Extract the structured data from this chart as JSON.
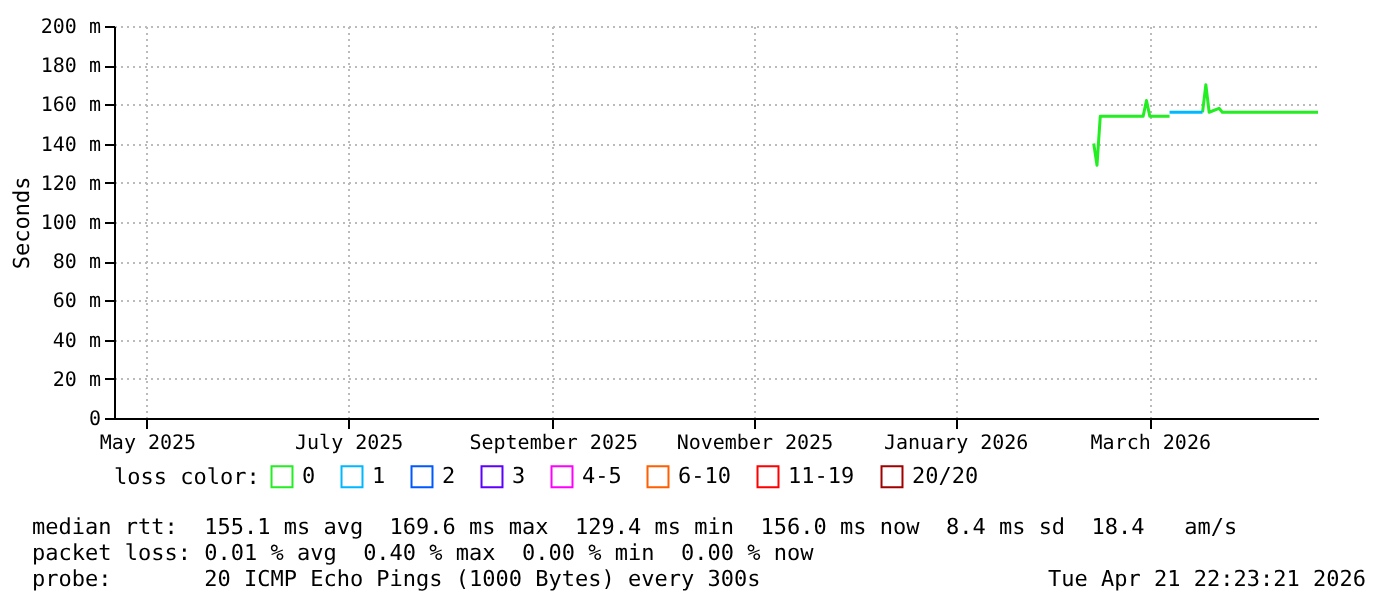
{
  "chart_data": {
    "type": "line",
    "ylabel": "Seconds",
    "legend_title": "loss color:",
    "legend": "bottom",
    "grid": true,
    "line_style": "solid",
    "marker": "none",
    "xlim": [
      "2025-04-21",
      "2026-04-21"
    ],
    "xticks": [
      {
        "value": "2025-05-01",
        "label": "May 2025"
      },
      {
        "value": "2025-07-01",
        "label": "July 2025"
      },
      {
        "value": "2025-09-01",
        "label": "September 2025"
      },
      {
        "value": "2025-11-01",
        "label": "November 2025"
      },
      {
        "value": "2026-01-01",
        "label": "January 2026"
      },
      {
        "value": "2026-03-01",
        "label": "March 2026"
      }
    ],
    "ylim": [
      0,
      200
    ],
    "yticks": [
      0,
      {
        "value": 20,
        "label": "20 m"
      },
      {
        "value": 40,
        "label": "40 m"
      },
      {
        "value": 60,
        "label": "60 m"
      },
      {
        "value": 80,
        "label": "80 m"
      },
      {
        "value": 100,
        "label": "100 m"
      },
      {
        "value": 120,
        "label": "120 m"
      },
      {
        "value": 140,
        "label": "140 m"
      },
      {
        "value": 160,
        "label": "160 m"
      },
      {
        "value": 180,
        "label": "180 m"
      },
      {
        "value": 200,
        "label": "200 m"
      }
    ],
    "series": [
      {
        "name": "0",
        "color": "#22ee22",
        "x": [
          "2026-02-12",
          "2026-02-13",
          "2026-02-14",
          "2026-02-27",
          "2026-02-28",
          "2026-03-01",
          "2026-03-07",
          "2026-03-12",
          "2026-03-17",
          "2026-03-18",
          "2026-03-19",
          "2026-03-22",
          "2026-03-23",
          "2026-04-21"
        ],
        "values": [
          140,
          129,
          154,
          154,
          162,
          154,
          154,
          null,
          156,
          170,
          156,
          158,
          156,
          156
        ]
      },
      {
        "name": "1",
        "color": "#00b8ff",
        "x": [
          "2026-03-07",
          "2026-03-17"
        ],
        "values": [
          156,
          156
        ]
      },
      {
        "name": "2",
        "color": "#0059ff"
      },
      {
        "name": "3",
        "color": "#5e00ff"
      },
      {
        "name": "4-5",
        "color": "#ff00ff"
      },
      {
        "name": "6-10",
        "color": "#ff5f00"
      },
      {
        "name": "11-19",
        "color": "#ff0000"
      },
      {
        "name": "20/20",
        "color": "#a10000"
      }
    ],
    "annotations": [
      "median rtt:  155.1 ms avg  169.6 ms max  129.4 ms min  156.0 ms now  8.4 ms sd  18.4   am/s",
      "packet loss: 0.01 % avg  0.40 % max  0.00 % min  0.00 % now",
      "probe:       20 ICMP Echo Pings (1000 Bytes) every 300s",
      "Tue Apr 21 22:23:21 2026"
    ]
  }
}
